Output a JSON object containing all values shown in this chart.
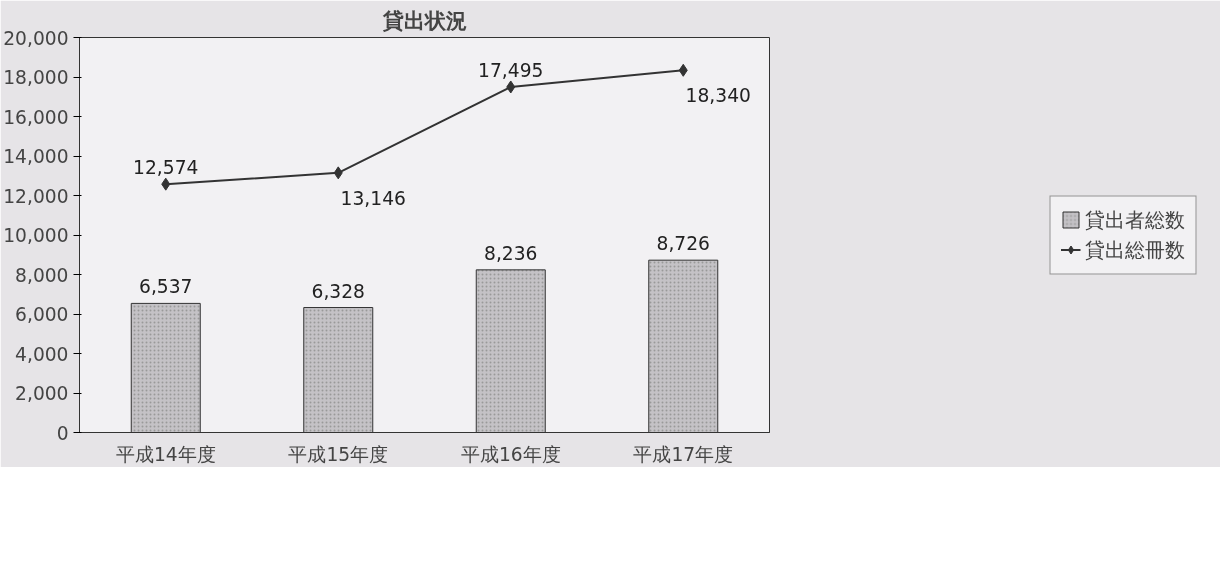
{
  "chart_data": {
    "type": "bar",
    "title": "貸出状況",
    "categories": [
      "平成14年度",
      "平成15年度",
      "平成16年度",
      "平成17年度"
    ],
    "series": [
      {
        "name": "貸出者総数",
        "color": "#c4c2c6",
        "values": [
          6537,
          6328,
          8236,
          8726
        ],
        "value_labels": [
          "6,537",
          "6,328",
          "8,236",
          "8,726"
        ]
      },
      {
        "name": "貸出総冊数",
        "type": "line",
        "color": "#333333",
        "marker": "diamond",
        "values": [
          12574,
          13146,
          17495,
          18340
        ],
        "value_labels": [
          "12,574",
          "13,146",
          "17,495",
          "18,340"
        ]
      }
    ],
    "ylim": [
      0,
      20000
    ],
    "yticks": [
      0,
      {
        "value": 2000,
        "label": "2,000"
      },
      {
        "value": 4000,
        "label": "4,000"
      },
      {
        "value": 6000,
        "label": "6,000"
      },
      {
        "value": 8000,
        "label": "8,000"
      },
      {
        "value": 10000,
        "label": "10,000"
      },
      {
        "value": 12000,
        "label": "12,000"
      },
      {
        "value": 14000,
        "label": "14,000"
      },
      {
        "value": 16000,
        "label": "16,000"
      },
      {
        "value": 18000,
        "label": "18,000"
      },
      {
        "value": 20000,
        "label": "20,000"
      }
    ],
    "grid": false,
    "legend": "right"
  }
}
